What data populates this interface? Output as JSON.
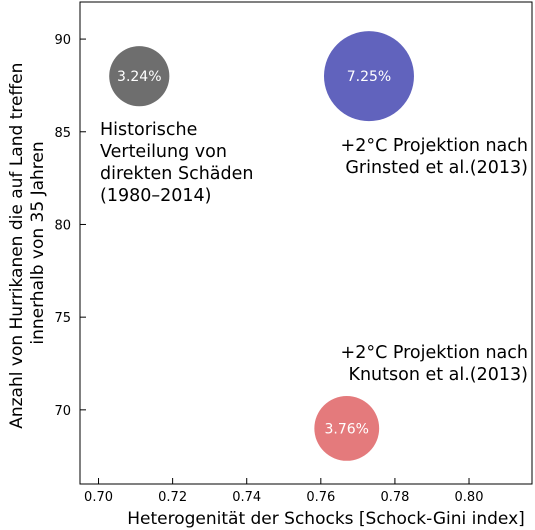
{
  "chart_data": {
    "type": "scatter",
    "xlabel": "Heterogenität der Schocks [Schock-Gini index]",
    "ylabel_lines": [
      "Anzahl von Hurrikanen die auf Land treffen",
      "innerhalb von 35 Jahren"
    ],
    "xlim": [
      0.695,
      0.817
    ],
    "ylim": [
      66.0,
      92.0
    ],
    "xticks": [
      0.7,
      0.72,
      0.74,
      0.76,
      0.78,
      0.8
    ],
    "xtick_labels": [
      "0.70",
      "0.72",
      "0.74",
      "0.76",
      "0.78",
      "0.80"
    ],
    "yticks": [
      70,
      75,
      80,
      85,
      90
    ],
    "ytick_labels": [
      "70",
      "75",
      "80",
      "85",
      "90"
    ],
    "grid": false,
    "points": [
      {
        "x": 0.711,
        "y": 88.0,
        "size": 3.24,
        "label": "3.24%",
        "color": "#6e6e6e",
        "annotation_lines": [
          "Historische",
          "Verteilung von",
          "direkten Schäden",
          "(1980–2014)"
        ]
      },
      {
        "x": 0.773,
        "y": 88.0,
        "size": 7.25,
        "label": "7.25%",
        "color": "#6163bd",
        "annotation_lines": [
          "+2°C Projektion nach",
          "Grinsted et al.(2013)"
        ]
      },
      {
        "x": 0.767,
        "y": 69.0,
        "size": 3.76,
        "label": "3.76%",
        "color": "#e47a7c",
        "annotation_lines": [
          "+2°C Projektion nach",
          "Knutson et al.(2013)"
        ]
      }
    ]
  }
}
